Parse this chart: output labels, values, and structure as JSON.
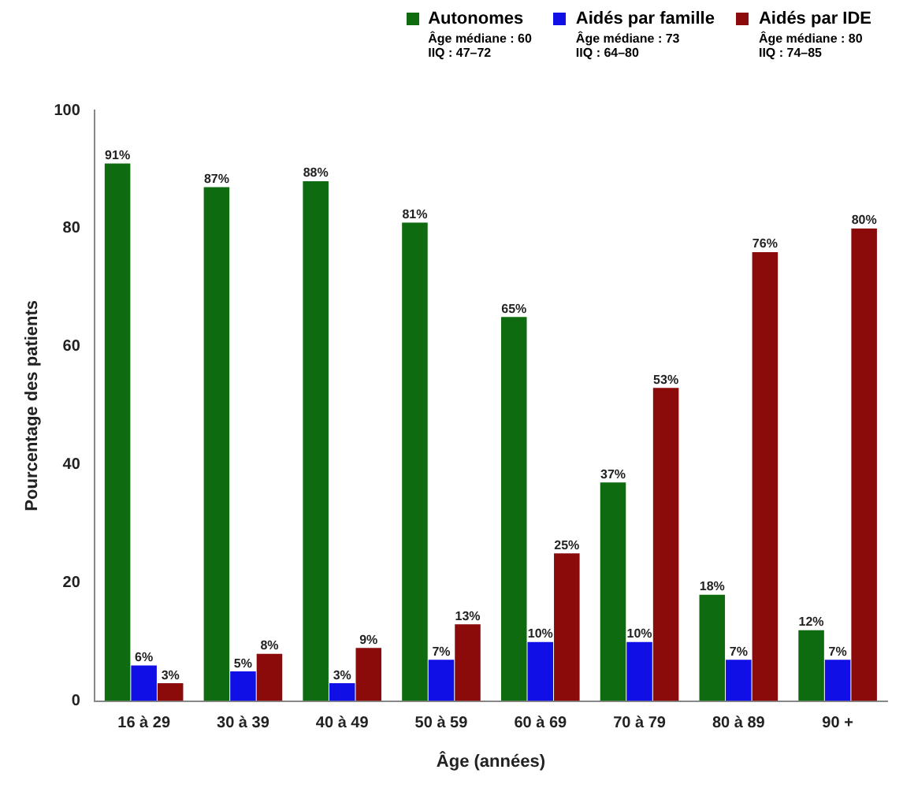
{
  "chart_data": {
    "type": "bar",
    "xlabel": "Âge (années)",
    "ylabel": "Pourcentage des patients",
    "categories": [
      "16 à 29",
      "30 à 39",
      "40 à 49",
      "50 à 59",
      "60 à 69",
      "70 à 79",
      "80 à 89",
      "90 +"
    ],
    "series": [
      {
        "name": "Autonomes",
        "color": "#0f6b0f",
        "values": [
          91,
          87,
          88,
          81,
          65,
          37,
          18,
          12
        ],
        "value_labels": [
          "91%",
          "87%",
          "88%",
          "81%",
          "65%",
          "37%",
          "18%",
          "12%"
        ]
      },
      {
        "name": "Aidés par famille",
        "color": "#1010e6",
        "values": [
          6,
          5,
          3,
          7,
          10,
          10,
          7,
          7
        ],
        "value_labels": [
          "6%",
          "5%",
          "3%",
          "7%",
          "10%",
          "10%",
          "7%",
          "7%"
        ]
      },
      {
        "name": "Aidés par IDE",
        "color": "#8b0a0a",
        "values": [
          3,
          8,
          9,
          13,
          25,
          53,
          76,
          80
        ],
        "value_labels": [
          "3%",
          "8%",
          "9%",
          "13%",
          "25%",
          "53%",
          "76%",
          "80%"
        ]
      }
    ],
    "annotations": [
      "Âge médiane : 60\nIIQ : 47–72",
      "Âge médiane : 73\nIIQ : 64–80",
      "Âge médiane : 80\nIIQ : 74–85"
    ],
    "ylim": [
      0,
      100
    ],
    "yticks": [
      0,
      20,
      40,
      60,
      80,
      100
    ],
    "grid": false,
    "legend": "top"
  }
}
